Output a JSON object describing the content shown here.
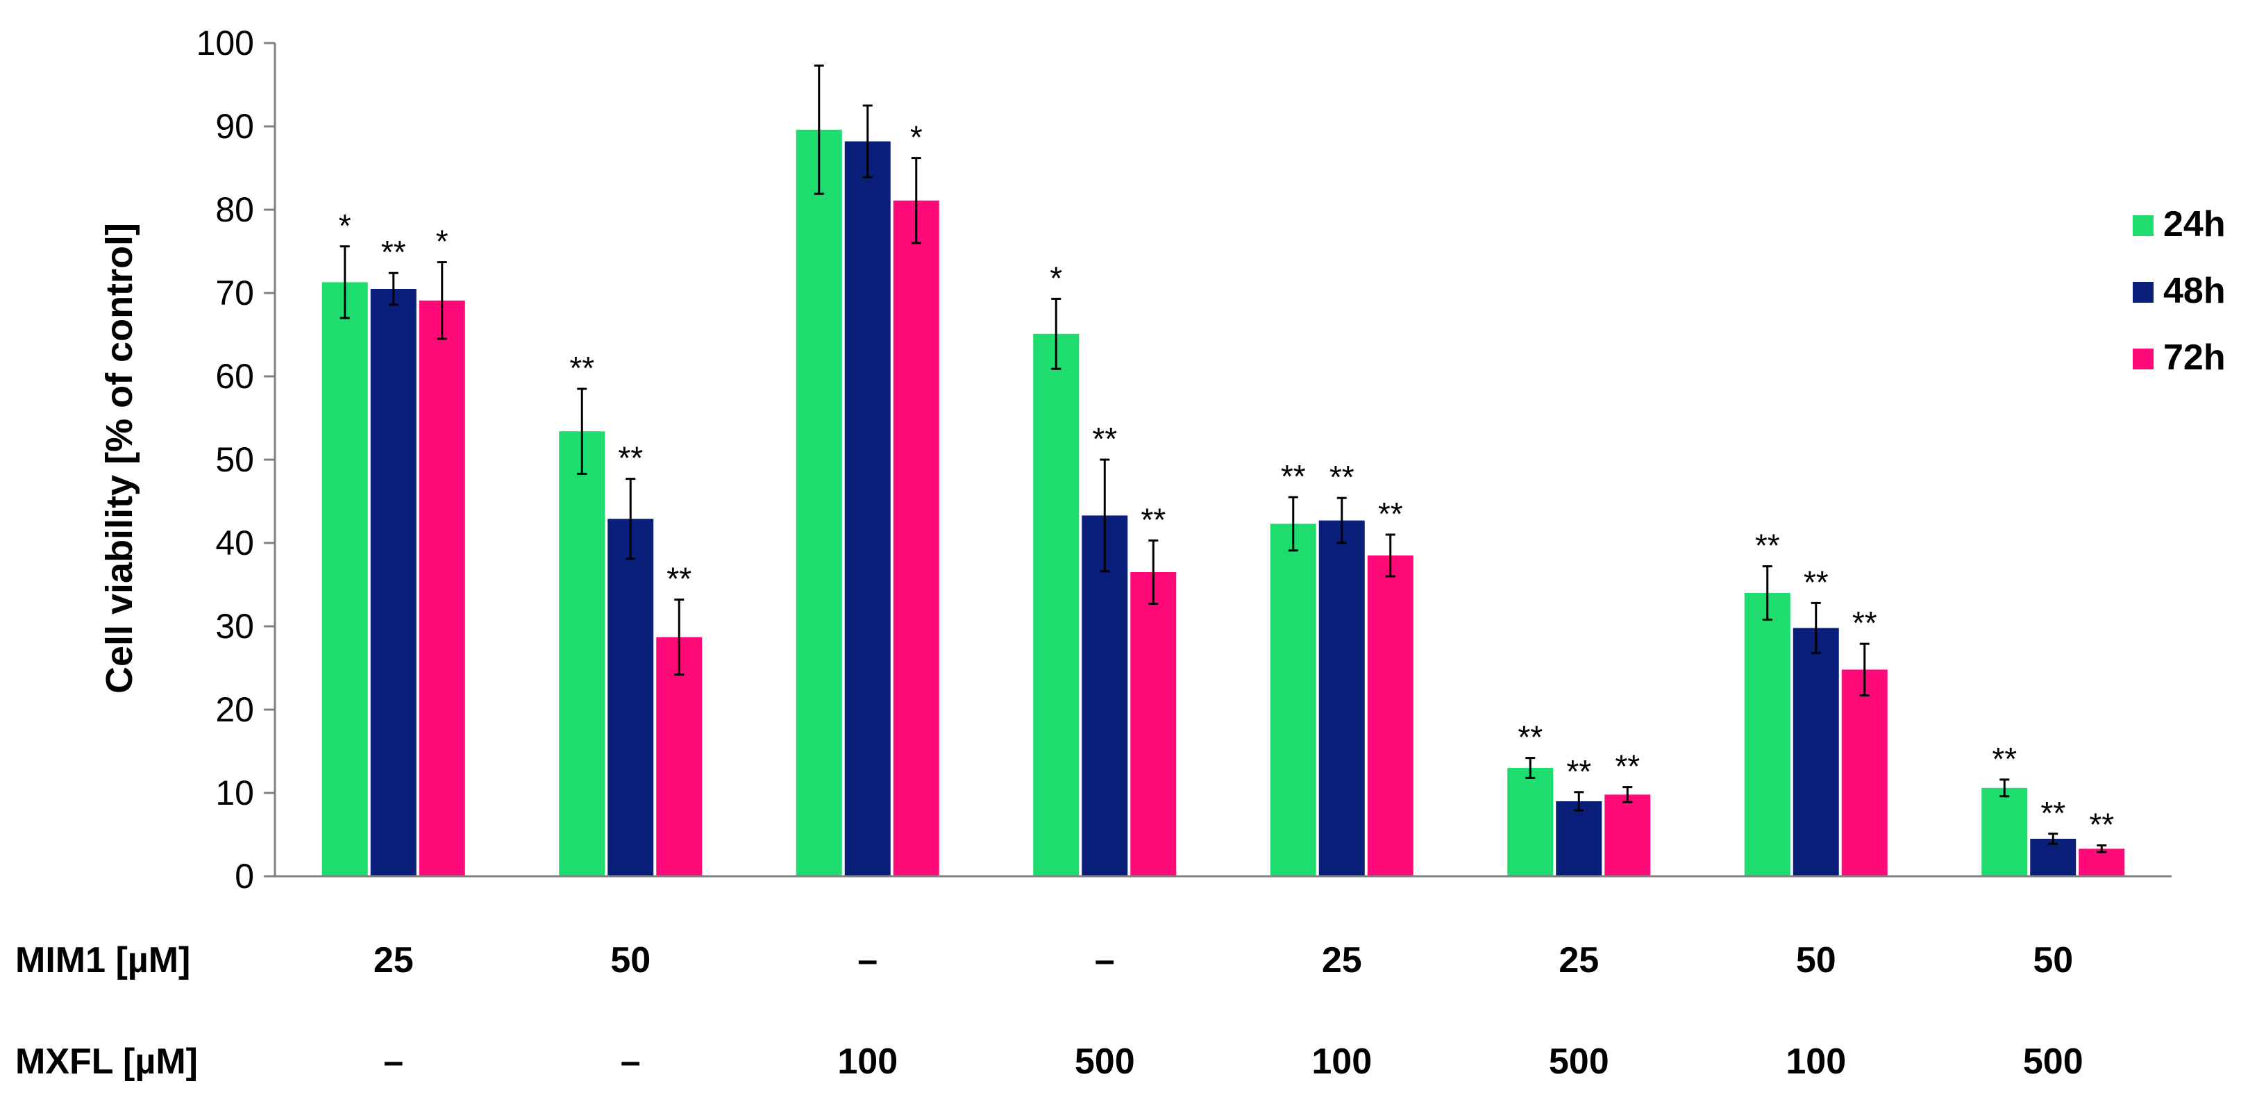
{
  "chart_data": {
    "type": "bar",
    "title": "",
    "xlabel": "",
    "ylabel": "Cell viability [% of control]",
    "ylim": [
      0,
      100
    ],
    "yticks": [
      0,
      10,
      20,
      30,
      40,
      50,
      60,
      70,
      80,
      90,
      100
    ],
    "grid": false,
    "legend_position": "right",
    "categories": [
      "25 / –",
      "50 / –",
      "– / 100",
      "– / 500",
      "25 / 100",
      "25 / 500",
      "50 / 100",
      "50 / 500"
    ],
    "category_rows": [
      {
        "label": "MIM1 [µM]",
        "values": [
          "25",
          "50",
          "–",
          "–",
          "25",
          "25",
          "50",
          "50"
        ]
      },
      {
        "label": "MXFL [µM]",
        "values": [
          "–",
          "–",
          "100",
          "500",
          "100",
          "500",
          "100",
          "500"
        ]
      }
    ],
    "series": [
      {
        "name": "24h",
        "color": "#1fdc6e",
        "values": [
          71.3,
          53.4,
          89.6,
          65.1,
          42.3,
          13.0,
          34.0,
          10.6
        ],
        "errors": [
          4.3,
          5.1,
          7.7,
          4.2,
          3.2,
          1.2,
          3.2,
          1.0
        ],
        "significance": [
          "*",
          "**",
          "",
          "*",
          "**",
          "**",
          "**",
          "**"
        ]
      },
      {
        "name": "48h",
        "color": "#0a1f7a",
        "values": [
          70.5,
          42.9,
          88.2,
          43.3,
          42.7,
          9.0,
          29.8,
          4.5
        ],
        "errors": [
          1.9,
          4.8,
          4.3,
          6.7,
          2.7,
          1.1,
          3.0,
          0.6
        ],
        "significance": [
          "**",
          "**",
          "",
          "**",
          "**",
          "**",
          "**",
          "**"
        ]
      },
      {
        "name": "72h",
        "color": "#ff0a78",
        "values": [
          69.1,
          28.7,
          81.1,
          36.5,
          38.5,
          9.8,
          24.8,
          3.3
        ],
        "errors": [
          4.6,
          4.5,
          5.1,
          3.8,
          2.5,
          0.9,
          3.1,
          0.4
        ],
        "significance": [
          "*",
          "**",
          "*",
          "**",
          "**",
          "**",
          "**",
          "**"
        ]
      }
    ]
  }
}
